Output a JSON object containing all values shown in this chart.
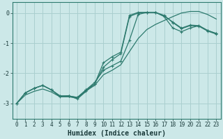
{
  "xlabel": "Humidex (Indice chaleur)",
  "bg_color": "#cce8e8",
  "grid_color": "#aacfcf",
  "line_color": "#2d7a6e",
  "xlim": [
    -0.5,
    23.5
  ],
  "ylim": [
    -3.5,
    0.35
  ],
  "yticks": [
    0,
    -1,
    -2,
    -3
  ],
  "xticks": [
    0,
    1,
    2,
    3,
    4,
    5,
    6,
    7,
    8,
    9,
    10,
    11,
    12,
    13,
    14,
    15,
    16,
    17,
    18,
    19,
    20,
    21,
    22,
    23
  ],
  "curve_peak_x": [
    0,
    1,
    2,
    3,
    4,
    5,
    6,
    7,
    8,
    9,
    10,
    11,
    12,
    13,
    14,
    15,
    16,
    17,
    18,
    19,
    20,
    21,
    22,
    23
  ],
  "curve_peak_y": [
    -3.0,
    -2.65,
    -2.5,
    -2.4,
    -2.55,
    -2.75,
    -2.75,
    -2.8,
    -2.55,
    -2.35,
    -1.8,
    -1.55,
    -1.35,
    -0.12,
    0.0,
    0.02,
    0.02,
    -0.1,
    -0.3,
    -0.5,
    -0.4,
    -0.42,
    -0.58,
    -0.68
  ],
  "curve_mid_x": [
    0,
    1,
    2,
    3,
    4,
    5,
    6,
    7,
    8,
    9,
    10,
    11,
    12,
    13,
    14,
    15,
    16,
    17,
    18,
    19,
    20,
    21,
    22,
    23
  ],
  "curve_mid_y": [
    -3.0,
    -2.65,
    -2.5,
    -2.4,
    -2.55,
    -2.75,
    -2.75,
    -2.8,
    -2.55,
    -2.3,
    -1.9,
    -1.75,
    -1.6,
    -0.9,
    -0.05,
    0.02,
    0.02,
    -0.12,
    -0.5,
    -0.62,
    -0.5,
    -0.42,
    -0.58,
    -0.68
  ],
  "curve_diag_x": [
    0,
    1,
    2,
    3,
    4,
    5,
    6,
    7,
    8,
    9,
    10,
    11,
    12,
    13,
    14,
    15,
    16,
    17,
    18,
    19,
    20,
    21,
    22,
    23
  ],
  "curve_diag_y": [
    -3.0,
    -2.72,
    -2.6,
    -2.52,
    -2.62,
    -2.78,
    -2.78,
    -2.82,
    -2.58,
    -2.4,
    -2.05,
    -1.9,
    -1.72,
    -1.28,
    -0.85,
    -0.55,
    -0.38,
    -0.25,
    -0.12,
    -0.0,
    0.05,
    0.05,
    -0.05,
    -0.2
  ],
  "curve_bump_x": [
    0,
    1,
    2,
    3,
    4,
    5,
    6,
    7,
    8,
    9,
    10,
    11,
    12,
    13,
    14,
    15,
    16,
    17,
    18,
    19,
    20,
    21,
    22,
    23
  ],
  "curve_bump_y": [
    -3.0,
    -2.65,
    -2.5,
    -2.4,
    -2.55,
    -2.78,
    -2.75,
    -2.85,
    -2.6,
    -2.35,
    -1.65,
    -1.45,
    -1.3,
    -0.08,
    0.02,
    0.02,
    0.02,
    -0.08,
    -0.32,
    -0.52,
    -0.42,
    -0.44,
    -0.6,
    -0.7
  ]
}
